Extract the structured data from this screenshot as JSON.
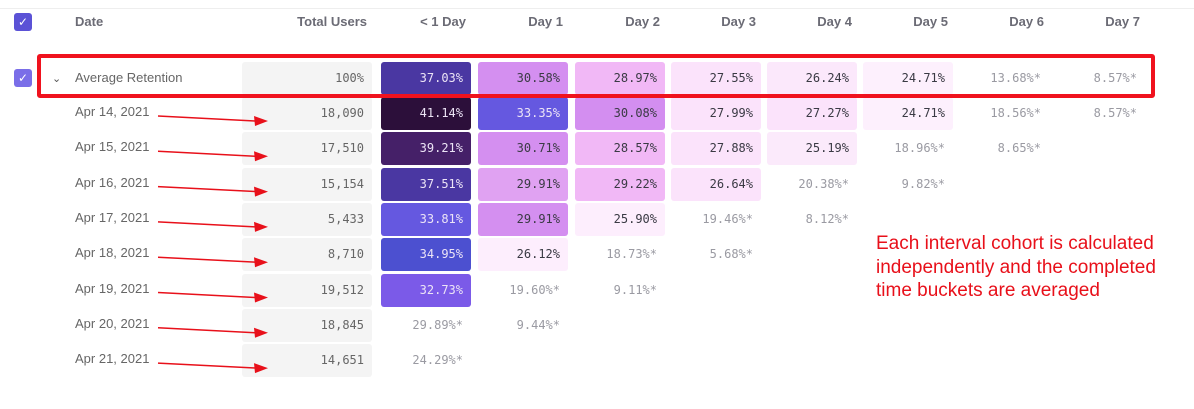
{
  "header": {
    "date": "Date",
    "total_users": "Total Users",
    "columns": [
      "< 1 Day",
      "Day 1",
      "Day 2",
      "Day 3",
      "Day 4",
      "Day 5",
      "Day 6",
      "Day 7"
    ]
  },
  "colors": {
    "accent": "#5b52d6",
    "annotation": "#e8101a"
  },
  "average": {
    "label": "Average Retention",
    "total": "100%",
    "cells": [
      {
        "v": "37.03%",
        "bg": "#4a37a2",
        "dark": true
      },
      {
        "v": "30.58%",
        "bg": "#d48ff0"
      },
      {
        "v": "28.97%",
        "bg": "#f1b8f6"
      },
      {
        "v": "27.55%",
        "bg": "#fbe3fb"
      },
      {
        "v": "26.24%",
        "bg": "#fbe8fb"
      },
      {
        "v": "24.71%",
        "bg": "#fdf0fd"
      },
      {
        "v": "13.68%*",
        "inc": true
      },
      {
        "v": "8.57%*",
        "inc": true
      }
    ]
  },
  "rows": [
    {
      "date": "Apr 14, 2021",
      "total": "18,090",
      "cells": [
        {
          "v": "41.14%",
          "bg": "#2c0f3a",
          "dark": true
        },
        {
          "v": "33.35%",
          "bg": "#6558e0",
          "dark": true
        },
        {
          "v": "30.08%",
          "bg": "#d38ef0"
        },
        {
          "v": "27.99%",
          "bg": "#fbe3fb"
        },
        {
          "v": "27.27%",
          "bg": "#fbe3fb"
        },
        {
          "v": "24.71%",
          "bg": "#fdf0fd"
        },
        {
          "v": "18.56%*",
          "inc": true
        },
        {
          "v": "8.57%*",
          "inc": true
        }
      ]
    },
    {
      "date": "Apr 15, 2021",
      "total": "17,510",
      "cells": [
        {
          "v": "39.21%",
          "bg": "#452068",
          "dark": true
        },
        {
          "v": "30.71%",
          "bg": "#d48ff0"
        },
        {
          "v": "28.57%",
          "bg": "#f1b8f6"
        },
        {
          "v": "27.88%",
          "bg": "#fbe3fb"
        },
        {
          "v": "25.19%",
          "bg": "#fbeafb"
        },
        {
          "v": "18.96%*",
          "inc": true
        },
        {
          "v": "8.65%*",
          "inc": true
        }
      ]
    },
    {
      "date": "Apr 16, 2021",
      "total": "15,154",
      "cells": [
        {
          "v": "37.51%",
          "bg": "#4a37a2",
          "dark": true
        },
        {
          "v": "29.91%",
          "bg": "#e0a2f2"
        },
        {
          "v": "29.22%",
          "bg": "#f1b8f6"
        },
        {
          "v": "26.64%",
          "bg": "#fbe3fb"
        },
        {
          "v": "20.38%*",
          "inc": true
        },
        {
          "v": "9.82%*",
          "inc": true
        }
      ]
    },
    {
      "date": "Apr 17, 2021",
      "total": "5,433",
      "cells": [
        {
          "v": "33.81%",
          "bg": "#6558e0",
          "dark": true
        },
        {
          "v": "29.91%",
          "bg": "#d48ff0"
        },
        {
          "v": "25.90%",
          "bg": "#fdeefd"
        },
        {
          "v": "19.46%*",
          "inc": true
        },
        {
          "v": "8.12%*",
          "inc": true
        }
      ]
    },
    {
      "date": "Apr 18, 2021",
      "total": "8,710",
      "cells": [
        {
          "v": "34.95%",
          "bg": "#4c50d0",
          "dark": true
        },
        {
          "v": "26.12%",
          "bg": "#fdeefd"
        },
        {
          "v": "18.73%*",
          "inc": true
        },
        {
          "v": "5.68%*",
          "inc": true
        }
      ]
    },
    {
      "date": "Apr 19, 2021",
      "total": "19,512",
      "cells": [
        {
          "v": "32.73%",
          "bg": "#7b5ae8",
          "dark": true
        },
        {
          "v": "19.60%*",
          "inc": true
        },
        {
          "v": "9.11%*",
          "inc": true
        }
      ]
    },
    {
      "date": "Apr 20, 2021",
      "total": "18,845",
      "cells": [
        {
          "v": "29.89%*",
          "inc": true
        },
        {
          "v": "9.44%*",
          "inc": true
        }
      ]
    },
    {
      "date": "Apr 21, 2021",
      "total": "14,651",
      "cells": [
        {
          "v": "24.29%*",
          "inc": true
        }
      ]
    }
  ],
  "annotation": "Each interval cohort is calculated independently and the completed time buckets are averaged"
}
